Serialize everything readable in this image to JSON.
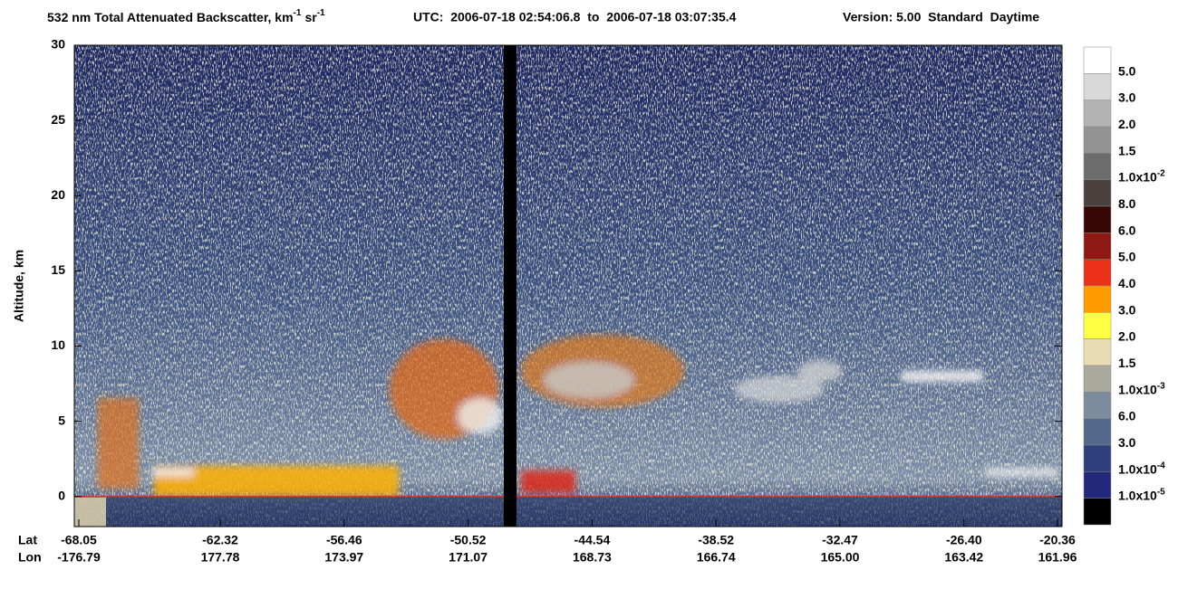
{
  "title": {
    "text": "532 nm Total Attenuated Backscatter, km",
    "exp1": "-1",
    "unit2": "sr",
    "exp2": "-1",
    "utc": "UTC:  2006-07-18 02:54:06.8  to  2006-07-18 03:07:35.4",
    "version": "Version: 5.00  Standard  Daytime"
  },
  "y_axis": {
    "label": "Altitude, km",
    "ylim": [
      -2,
      30
    ],
    "yticks": [
      0,
      5,
      10,
      15,
      20,
      25,
      30
    ]
  },
  "x_axis": {
    "lat_label": "Lat",
    "lon_label": "Lon",
    "lat": [
      "-68.05",
      "-62.32",
      "-56.46",
      "-50.52",
      "-44.54",
      "-38.52",
      "-32.47",
      "-26.40",
      "-20.36"
    ],
    "lon": [
      "-176.79",
      "177.78",
      "173.97",
      "171.07",
      "168.73",
      "166.74",
      "165.00",
      "163.42",
      "161.96"
    ]
  },
  "colorbar": {
    "colors": [
      "#ffffff",
      "#d9d9d9",
      "#b3b3b3",
      "#939393",
      "#6c6c6c",
      "#4a403d",
      "#380805",
      "#8c1a12",
      "#ea3016",
      "#ff9a00",
      "#ffff44",
      "#e9dcb2",
      "#a9aa9c",
      "#7c8c9c",
      "#52698c",
      "#2e407c",
      "#22287a",
      "#000000"
    ],
    "labels": [
      {
        "text": "5.0"
      },
      {
        "text": "3.0"
      },
      {
        "text": "2.0"
      },
      {
        "text": "1.5"
      },
      {
        "text": "1.0x10",
        "exponent": "-2"
      },
      {
        "text": "8.0"
      },
      {
        "text": "6.0"
      },
      {
        "text": "5.0"
      },
      {
        "text": "4.0"
      },
      {
        "text": "3.0"
      },
      {
        "text": "2.0"
      },
      {
        "text": "1.5"
      },
      {
        "text": "1.0x10",
        "exponent": "-3"
      },
      {
        "text": "6.0"
      },
      {
        "text": "3.0"
      },
      {
        "text": "1.0x10",
        "exponent": "-4"
      },
      {
        "text": "1.0x10",
        "exponent": "-5"
      }
    ]
  }
}
